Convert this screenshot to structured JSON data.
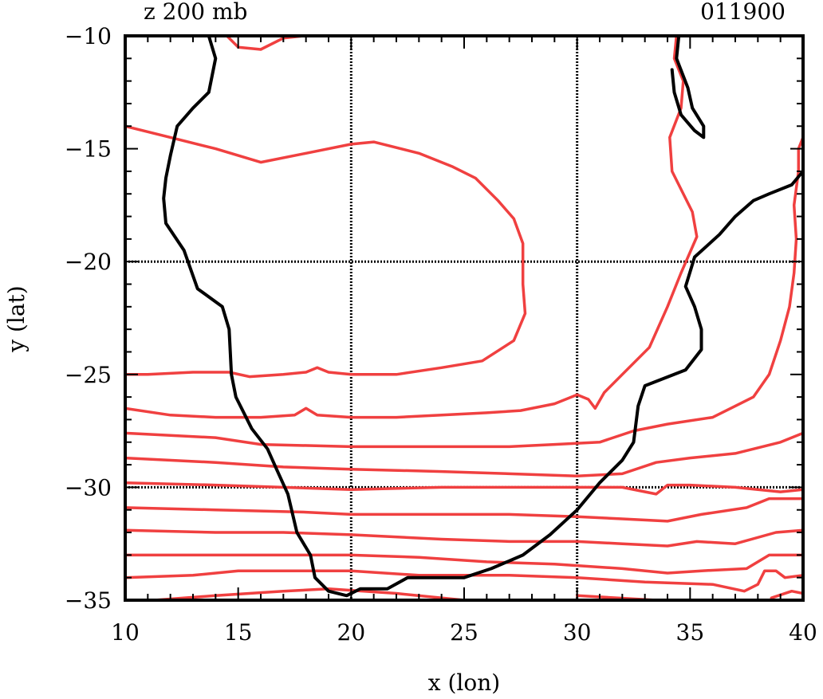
{
  "header": {
    "left_title": "z 200 mb",
    "right_title": "011900"
  },
  "colors": {
    "frame": "#000000",
    "coastline": "#000000",
    "contours": "#f04040",
    "grid": "#000000"
  },
  "chart_data": {
    "type": "contour-map",
    "title_left": "z 200 mb",
    "title_right": "011900",
    "xlabel": "x (lon)",
    "ylabel": "y (lat)",
    "xlim": [
      10,
      40
    ],
    "ylim": [
      -35,
      -10
    ],
    "x_ticks": [
      "10",
      "15",
      "20",
      "25",
      "30",
      "35",
      "40"
    ],
    "y_ticks": [
      "−10",
      "−15",
      "−20",
      "−25",
      "−30",
      "−35"
    ],
    "x_tick_values": [
      10,
      15,
      20,
      25,
      30,
      35,
      40
    ],
    "y_tick_values": [
      -10,
      -15,
      -20,
      -25,
      -30,
      -35
    ],
    "grid_lon": [
      20,
      30
    ],
    "grid_lat": [
      -20,
      -30
    ],
    "coastline": [
      [
        [
          13.7,
          -10
        ],
        [
          14.0,
          -11
        ],
        [
          13.7,
          -12.5
        ],
        [
          13.0,
          -13.2
        ],
        [
          12.3,
          -14
        ],
        [
          12.0,
          -15.3
        ],
        [
          11.8,
          -16.3
        ],
        [
          11.7,
          -17.2
        ],
        [
          11.8,
          -18.3
        ],
        [
          12.6,
          -19.5
        ],
        [
          13.2,
          -21.2
        ],
        [
          14.3,
          -22
        ],
        [
          14.6,
          -23
        ],
        [
          14.7,
          -25
        ],
        [
          14.9,
          -26
        ],
        [
          15.6,
          -27.4
        ],
        [
          16.3,
          -28.3
        ],
        [
          16.7,
          -29.2
        ],
        [
          17.2,
          -30.3
        ],
        [
          17.6,
          -32
        ],
        [
          18.2,
          -33
        ],
        [
          18.4,
          -34
        ],
        [
          19.0,
          -34.6
        ],
        [
          19.8,
          -34.8
        ],
        [
          20.4,
          -34.5
        ],
        [
          21.6,
          -34.5
        ],
        [
          22.5,
          -34
        ],
        [
          24.0,
          -34
        ],
        [
          25.0,
          -34
        ],
        [
          26.2,
          -33.6
        ],
        [
          27.6,
          -33
        ],
        [
          28.8,
          -32.1
        ],
        [
          30.0,
          -31
        ],
        [
          31.0,
          -29.8
        ],
        [
          32.0,
          -28.8
        ],
        [
          32.5,
          -28
        ],
        [
          32.7,
          -26.4
        ],
        [
          33.0,
          -25.5
        ],
        [
          34.8,
          -24.8
        ],
        [
          35.5,
          -23.9
        ],
        [
          35.5,
          -23
        ],
        [
          35.2,
          -22
        ],
        [
          34.8,
          -21.1
        ],
        [
          35.2,
          -19.8
        ],
        [
          36.3,
          -18.8
        ],
        [
          37.0,
          -18
        ],
        [
          37.8,
          -17.3
        ],
        [
          38.5,
          -17
        ],
        [
          39.5,
          -16.6
        ],
        [
          40.0,
          -16
        ]
      ],
      [
        [
          34.5,
          -10
        ],
        [
          34.4,
          -11
        ],
        [
          34.9,
          -12.3
        ],
        [
          35.1,
          -13.2
        ],
        [
          35.6,
          -14.0
        ],
        [
          35.6,
          -14.5
        ],
        [
          35.2,
          -14.2
        ],
        [
          34.6,
          -13.5
        ],
        [
          34.3,
          -12.5
        ],
        [
          34.2,
          -11.5
        ]
      ]
    ],
    "contours": [
      [
        [
          18.6,
          -10
        ],
        [
          19.5,
          -10
        ]
      ],
      [
        [
          14.5,
          -10
        ],
        [
          15.0,
          -10.5
        ],
        [
          16.0,
          -10.6
        ],
        [
          17.0,
          -10.1
        ],
        [
          17.9,
          -10
        ]
      ],
      [
        [
          10,
          -14
        ],
        [
          12,
          -14.5
        ],
        [
          14,
          -15.0
        ],
        [
          15,
          -15.3
        ],
        [
          16,
          -15.6
        ],
        [
          18,
          -15.2
        ],
        [
          20,
          -14.8
        ],
        [
          21,
          -14.7
        ],
        [
          23,
          -15.2
        ],
        [
          24.5,
          -15.8
        ],
        [
          25.5,
          -16.3
        ],
        [
          26.5,
          -17.3
        ],
        [
          27.2,
          -18.1
        ],
        [
          27.6,
          -19.2
        ],
        [
          27.6,
          -21
        ],
        [
          27.7,
          -22.3
        ],
        [
          27.2,
          -23.5
        ],
        [
          25.8,
          -24.4
        ],
        [
          24.0,
          -24.7
        ],
        [
          22.0,
          -25.0
        ],
        [
          21.0,
          -25.0
        ],
        [
          20.0,
          -25.0
        ],
        [
          19.0,
          -24.9
        ],
        [
          18.5,
          -24.7
        ],
        [
          18.0,
          -24.9
        ],
        [
          17.0,
          -25.0
        ],
        [
          15.5,
          -25.1
        ],
        [
          14.6,
          -24.9
        ],
        [
          13.0,
          -24.9
        ],
        [
          11.0,
          -25.0
        ],
        [
          10,
          -25
        ]
      ],
      [
        [
          10,
          -26.5
        ],
        [
          12,
          -26.8
        ],
        [
          14,
          -26.9
        ],
        [
          16,
          -26.9
        ],
        [
          17.5,
          -26.8
        ],
        [
          18.0,
          -26.5
        ],
        [
          18.5,
          -26.8
        ],
        [
          20,
          -26.9
        ],
        [
          22,
          -26.9
        ],
        [
          24,
          -26.8
        ],
        [
          26,
          -26.7
        ],
        [
          27.5,
          -26.6
        ],
        [
          29,
          -26.3
        ],
        [
          30,
          -25.9
        ],
        [
          30.5,
          -26.1
        ],
        [
          30.8,
          -26.5
        ],
        [
          31.2,
          -25.8
        ],
        [
          32.0,
          -25
        ],
        [
          33.2,
          -23.8
        ],
        [
          34.0,
          -22
        ],
        [
          34.6,
          -20.5
        ],
        [
          35.3,
          -18.9
        ],
        [
          35.1,
          -17.8
        ],
        [
          34.2,
          -16
        ],
        [
          34.1,
          -14.5
        ],
        [
          34.6,
          -13.2
        ],
        [
          34.7,
          -12
        ],
        [
          34.3,
          -11
        ],
        [
          34.4,
          -10
        ]
      ],
      [
        [
          10,
          -27.6
        ],
        [
          14,
          -27.8
        ],
        [
          16,
          -28.1
        ],
        [
          20,
          -28.2
        ],
        [
          24,
          -28.2
        ],
        [
          27,
          -28.2
        ],
        [
          29,
          -28.1
        ],
        [
          31,
          -28.0
        ],
        [
          32.5,
          -27.5
        ],
        [
          34,
          -27.2
        ],
        [
          36,
          -26.9
        ],
        [
          37.8,
          -26.0
        ],
        [
          38.5,
          -25
        ],
        [
          39.0,
          -23.5
        ],
        [
          39.4,
          -22
        ],
        [
          39.6,
          -20.5
        ],
        [
          39.7,
          -19
        ],
        [
          39.6,
          -17.5
        ],
        [
          39.8,
          -16.0
        ],
        [
          39.8,
          -15
        ],
        [
          40.0,
          -14.5
        ]
      ],
      [
        [
          10,
          -28.7
        ],
        [
          14,
          -28.9
        ],
        [
          17,
          -29.1
        ],
        [
          20,
          -29.2
        ],
        [
          24,
          -29.3
        ],
        [
          27,
          -29.4
        ],
        [
          30,
          -29.5
        ],
        [
          32,
          -29.4
        ],
        [
          33.5,
          -28.9
        ],
        [
          35,
          -28.7
        ],
        [
          37,
          -28.5
        ],
        [
          39,
          -28.0
        ],
        [
          40,
          -27.6
        ]
      ],
      [
        [
          10,
          -29.8
        ],
        [
          14,
          -29.9
        ],
        [
          17,
          -30.0
        ],
        [
          20,
          -30.1
        ],
        [
          24,
          -30.0
        ],
        [
          27,
          -30.0
        ],
        [
          30,
          -30.0
        ],
        [
          32,
          -30.0
        ],
        [
          33.5,
          -30.3
        ],
        [
          34.0,
          -29.9
        ],
        [
          35,
          -29.9
        ],
        [
          37,
          -30.0
        ],
        [
          39,
          -30.2
        ],
        [
          40,
          -30.1
        ]
      ],
      [
        [
          10,
          -30.9
        ],
        [
          14,
          -31.0
        ],
        [
          18,
          -31.1
        ],
        [
          20,
          -31.2
        ],
        [
          24,
          -31.2
        ],
        [
          27,
          -31.2
        ],
        [
          30,
          -31.3
        ],
        [
          32,
          -31.4
        ],
        [
          34,
          -31.5
        ],
        [
          35.5,
          -31.2
        ],
        [
          37.5,
          -30.9
        ],
        [
          38.5,
          -30.5
        ],
        [
          40,
          -30.5
        ]
      ],
      [
        [
          10,
          -31.9
        ],
        [
          14,
          -32.0
        ],
        [
          17,
          -32.0
        ],
        [
          20,
          -32.1
        ],
        [
          24,
          -32.3
        ],
        [
          27,
          -32.4
        ],
        [
          30,
          -32.4
        ],
        [
          32,
          -32.5
        ],
        [
          34,
          -32.6
        ],
        [
          35.3,
          -32.4
        ],
        [
          37,
          -32.5
        ],
        [
          38.8,
          -32.0
        ],
        [
          40,
          -31.9
        ]
      ],
      [
        [
          10,
          -33.0
        ],
        [
          14,
          -33.0
        ],
        [
          17,
          -33.0
        ],
        [
          20,
          -33.0
        ],
        [
          23,
          -33.1
        ],
        [
          26,
          -33.3
        ],
        [
          29,
          -33.4
        ],
        [
          32,
          -33.6
        ],
        [
          34,
          -33.8
        ],
        [
          35.5,
          -33.7
        ],
        [
          37.5,
          -33.6
        ],
        [
          38.5,
          -33.0
        ],
        [
          40,
          -33.0
        ]
      ],
      [
        [
          10,
          -34.0
        ],
        [
          13,
          -33.9
        ],
        [
          15,
          -33.7
        ],
        [
          17,
          -33.7
        ],
        [
          20,
          -33.7
        ],
        [
          23,
          -33.9
        ],
        [
          27,
          -33.9
        ],
        [
          30,
          -34.0
        ],
        [
          33,
          -34.2
        ],
        [
          36,
          -34.3
        ],
        [
          37.4,
          -34.6
        ],
        [
          38.0,
          -34.3
        ],
        [
          38.3,
          -33.7
        ],
        [
          38.8,
          -33.7
        ],
        [
          39.2,
          -34
        ],
        [
          40,
          -33.9
        ]
      ],
      [
        [
          11.3,
          -35
        ],
        [
          14,
          -34.8
        ],
        [
          17,
          -34.6
        ],
        [
          19,
          -34.5
        ],
        [
          22,
          -34.7
        ],
        [
          25,
          -35.0
        ]
      ],
      [
        [
          30,
          -34.8
        ],
        [
          33.5,
          -35.0
        ]
      ],
      [
        [
          38.6,
          -34.9
        ],
        [
          39.5,
          -34.6
        ],
        [
          40,
          -34.7
        ]
      ]
    ]
  }
}
